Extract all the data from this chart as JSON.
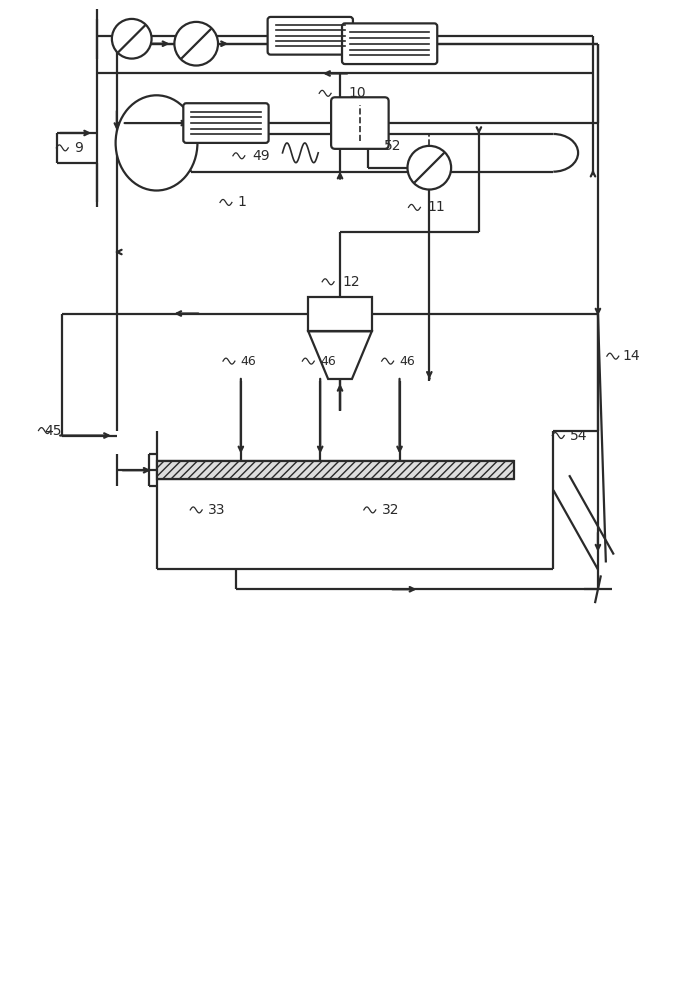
{
  "bg_color": "#ffffff",
  "line_color": "#2a2a2a",
  "lw": 1.6,
  "fig_w": 6.88,
  "fig_h": 10.0,
  "xlim": [
    0,
    688
  ],
  "ylim": [
    0,
    1000
  ]
}
